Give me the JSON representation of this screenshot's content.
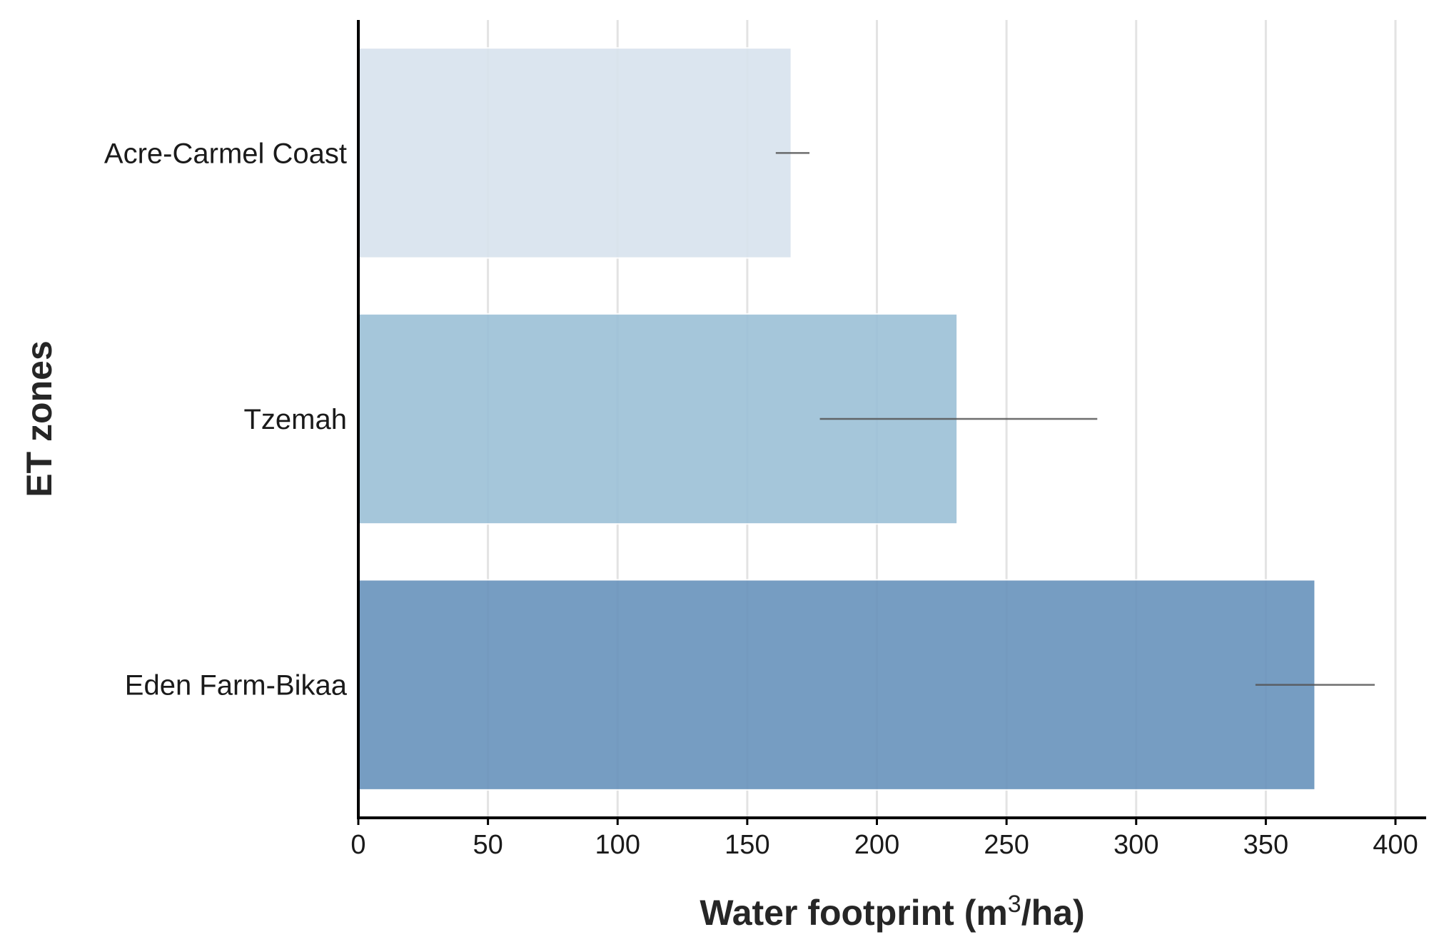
{
  "chart_data": {
    "type": "bar",
    "orientation": "horizontal",
    "categories": [
      "Acre-Carmel Coast",
      "Tzemah",
      "Eden Farm-Bikaa"
    ],
    "values": [
      167,
      231,
      369
    ],
    "error_ranges": [
      [
        161,
        174
      ],
      [
        178,
        285
      ],
      [
        346,
        392
      ]
    ],
    "colors": [
      "#d8e3ee",
      "#9cc0d7",
      "#6893bc"
    ],
    "xlabel": "Water footprint (m",
    "xlabel_superscript": "3",
    "xlabel_suffix": "/ha)",
    "ylabel": "ET zones",
    "xlim": [
      0,
      412
    ],
    "xticks": [
      0,
      50,
      100,
      150,
      200,
      250,
      300,
      350,
      400
    ],
    "xtick_labels": [
      "0",
      "50",
      "100",
      "150",
      "200",
      "250",
      "300",
      "350",
      "400"
    ],
    "grid": true
  }
}
